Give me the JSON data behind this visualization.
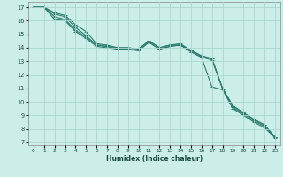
{
  "title": "",
  "xlabel": "Humidex (Indice chaleur)",
  "ylabel": "",
  "bg_color": "#cceee8",
  "grid_color": "#aad8d0",
  "line_color": "#2d7d6e",
  "xlim": [
    -0.5,
    23.5
  ],
  "ylim": [
    6.8,
    17.4
  ],
  "yticks": [
    7,
    8,
    9,
    10,
    11,
    12,
    13,
    14,
    15,
    16,
    17
  ],
  "xticks": [
    0,
    1,
    2,
    3,
    4,
    5,
    6,
    7,
    8,
    9,
    10,
    11,
    12,
    13,
    14,
    15,
    16,
    17,
    18,
    19,
    20,
    21,
    22,
    23
  ],
  "lines": [
    {
      "x": [
        0,
        1,
        2,
        3,
        4,
        5,
        6,
        7,
        8,
        9,
        10,
        11,
        12,
        13,
        14,
        15,
        16,
        17,
        18,
        19,
        20,
        21,
        22,
        23
      ],
      "y": [
        17.0,
        17.0,
        16.6,
        16.4,
        15.7,
        15.2,
        14.3,
        14.2,
        14.0,
        14.0,
        13.9,
        14.5,
        14.0,
        14.2,
        14.3,
        13.8,
        13.4,
        13.2,
        11.0,
        9.7,
        9.2,
        8.7,
        8.3,
        7.4
      ]
    },
    {
      "x": [
        0,
        1,
        2,
        3,
        4,
        5,
        6,
        7,
        8,
        9,
        10,
        11,
        12,
        13,
        14,
        15,
        16,
        17,
        18,
        19,
        20,
        21,
        22,
        23
      ],
      "y": [
        17.0,
        17.0,
        16.5,
        16.3,
        15.5,
        14.9,
        14.2,
        14.1,
        13.9,
        13.9,
        13.8,
        14.4,
        13.9,
        14.1,
        14.2,
        13.7,
        13.3,
        13.1,
        11.0,
        9.6,
        9.1,
        8.6,
        8.2,
        7.4
      ]
    },
    {
      "x": [
        0,
        1,
        2,
        3,
        4,
        5,
        6,
        7,
        8,
        9,
        10,
        11,
        12,
        13,
        14,
        15,
        16,
        17,
        18,
        19,
        20,
        21,
        22,
        23
      ],
      "y": [
        17.0,
        17.0,
        16.3,
        16.1,
        15.3,
        14.8,
        14.2,
        14.1,
        14.0,
        14.0,
        13.9,
        14.5,
        14.0,
        14.2,
        14.2,
        13.8,
        13.4,
        13.2,
        11.0,
        9.7,
        9.2,
        8.7,
        8.3,
        7.4
      ]
    },
    {
      "x": [
        0,
        1,
        2,
        3,
        4,
        5,
        6,
        7,
        8,
        9,
        10,
        11,
        12,
        13,
        14,
        15,
        16,
        17,
        18,
        19,
        20,
        21,
        22,
        23
      ],
      "y": [
        17.0,
        17.0,
        16.1,
        16.0,
        15.2,
        14.7,
        14.1,
        14.0,
        13.9,
        13.85,
        13.8,
        14.4,
        13.9,
        14.1,
        14.2,
        13.7,
        13.3,
        11.1,
        10.9,
        9.5,
        9.0,
        8.5,
        8.1,
        7.35
      ]
    }
  ]
}
